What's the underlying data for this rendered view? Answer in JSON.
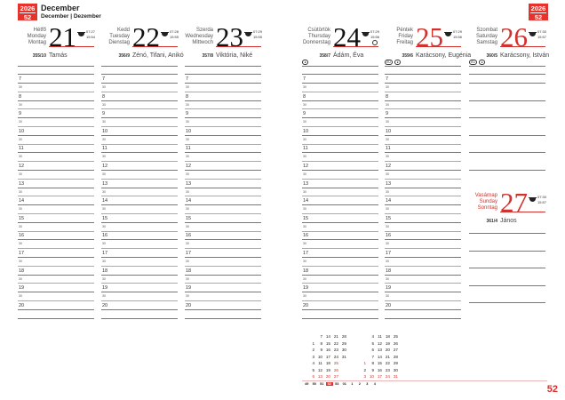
{
  "header": {
    "year": "2026",
    "week": "52",
    "month": "December",
    "month_sub": "December | Dezember"
  },
  "days": [
    {
      "names": [
        "Hétfő",
        "Monday",
        "Montag"
      ],
      "num": "21",
      "sunrise": "07:27",
      "sunset": "15:54",
      "doy": "355/10",
      "nameday": "Tamás",
      "red": false
    },
    {
      "names": [
        "Kedd",
        "Tuesday",
        "Dienstag"
      ],
      "num": "22",
      "sunrise": "07:28",
      "sunset": "15:55",
      "doy": "356/9",
      "nameday": "Zénó, Tifani, Anikó",
      "red": false
    },
    {
      "names": [
        "Szerda",
        "Wednesday",
        "Mittwoch"
      ],
      "num": "23",
      "sunrise": "07:29",
      "sunset": "15:55",
      "doy": "357/8",
      "nameday": "Viktória, Niké",
      "red": false
    },
    {
      "names": [
        "Csütörtök",
        "Thursday",
        "Donnerstag"
      ],
      "num": "24",
      "sunrise": "07:29",
      "sunset": "15:56",
      "doy": "358/7",
      "nameday": "Ádám, Éva",
      "red": false,
      "moon": "full-moon",
      "pills": [
        "●"
      ]
    },
    {
      "names": [
        "Péntek",
        "Friday",
        "Freitag"
      ],
      "num": "25",
      "sunrise": "07:29",
      "sunset": "15:56",
      "doy": "359/6",
      "nameday": "Karácsony, Eugénia",
      "red": true,
      "pills": [
        "EU",
        "●"
      ]
    },
    {
      "names": [
        "Szombat",
        "Saturday",
        "Samstag"
      ],
      "num": "26",
      "sunrise": "07:30",
      "sunset": "15:57",
      "doy": "360/5",
      "nameday": "Karácsony, István",
      "red": true,
      "pills": [
        "EU",
        "●"
      ]
    },
    {
      "names": [
        "Vasárnap",
        "Sunday",
        "Sonntag"
      ],
      "num": "27",
      "sunrise": "07:30",
      "sunset": "15:57",
      "doy": "361/4",
      "nameday": "János",
      "red": true
    }
  ],
  "hours": [
    "7",
    "8",
    "9",
    "10",
    "11",
    "12",
    "13",
    "14",
    "15",
    "16",
    "17",
    "18",
    "19",
    "20"
  ],
  "half_label": "30",
  "mini_calendar": {
    "december": [
      [
        "",
        "7",
        "14",
        "21",
        "28"
      ],
      [
        "1",
        "8",
        "15",
        "22",
        "29"
      ],
      [
        "2",
        "9",
        "16",
        "23",
        "30"
      ],
      [
        "3",
        "10",
        "17",
        "24",
        "31"
      ],
      [
        "4",
        "11",
        "18",
        "25"
      ],
      [
        "5",
        "12",
        "19",
        "26"
      ],
      [
        "6",
        "13",
        "20",
        "27"
      ]
    ],
    "december_red": [
      "25",
      "26",
      "6",
      "13",
      "20",
      "27"
    ],
    "january": [
      [
        "",
        "4",
        "11",
        "18",
        "25"
      ],
      [
        "",
        "5",
        "12",
        "19",
        "26"
      ],
      [
        "",
        "6",
        "13",
        "20",
        "27"
      ],
      [
        "",
        "7",
        "14",
        "21",
        "28"
      ],
      [
        "1",
        "8",
        "15",
        "22",
        "29"
      ],
      [
        "2",
        "9",
        "16",
        "23",
        "30"
      ],
      [
        "3",
        "10",
        "17",
        "24",
        "31"
      ]
    ],
    "january_red": [
      "1",
      "3",
      "10",
      "17",
      "24",
      "31"
    ]
  },
  "week_strip": [
    "49",
    "50",
    "51",
    "52",
    "53",
    "01",
    "1",
    "2",
    "3",
    "4"
  ],
  "current_week": "52",
  "page_number": "52",
  "colors": {
    "accent": "#e5322d"
  }
}
